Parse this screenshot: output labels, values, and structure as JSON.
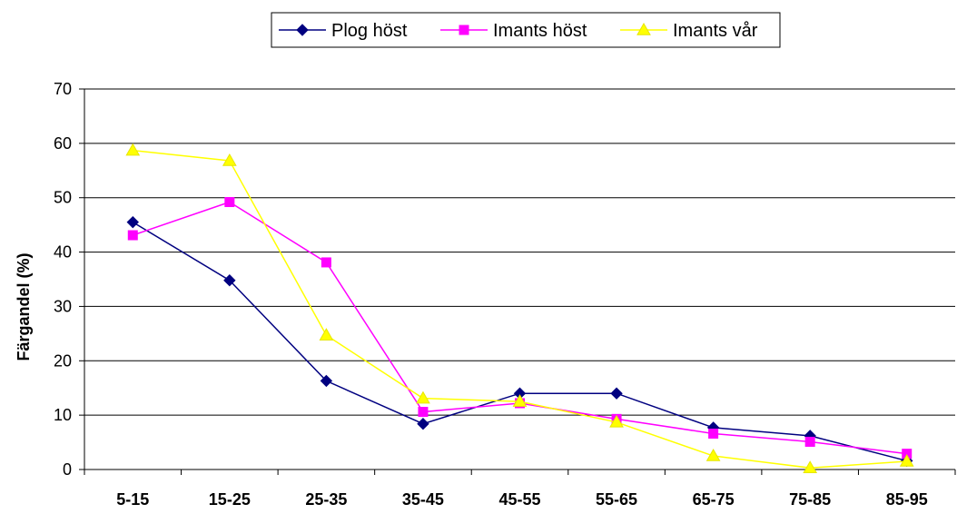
{
  "chart_data": {
    "type": "line",
    "categories": [
      "5-15",
      "15-25",
      "25-35",
      "35-45",
      "45-55",
      "55-65",
      "65-75",
      "75-85",
      "85-95"
    ],
    "ylabel": "Färgandel (%)",
    "xlabel": "",
    "ylim": [
      0,
      70
    ],
    "yticks": [
      "0",
      "10",
      "20",
      "30",
      "40",
      "50",
      "60",
      "70"
    ],
    "grid": "horizontal",
    "legend_position": "top",
    "series": [
      {
        "name": "Plog höst",
        "color": "#000080",
        "marker": "diamond",
        "values": [
          45.5,
          34.8,
          16.3,
          8.4,
          14.0,
          14.0,
          7.7,
          6.2,
          1.6
        ]
      },
      {
        "name": "Imants höst",
        "color": "#FF00FF",
        "marker": "square",
        "values": [
          43.1,
          49.2,
          38.1,
          10.6,
          12.2,
          9.3,
          6.6,
          5.1,
          2.9
        ]
      },
      {
        "name": "Imants vår",
        "color": "#FFFF00",
        "marker": "triangle",
        "values": [
          58.7,
          56.8,
          24.7,
          13.1,
          12.5,
          8.7,
          2.5,
          0.3,
          1.5
        ]
      }
    ]
  }
}
